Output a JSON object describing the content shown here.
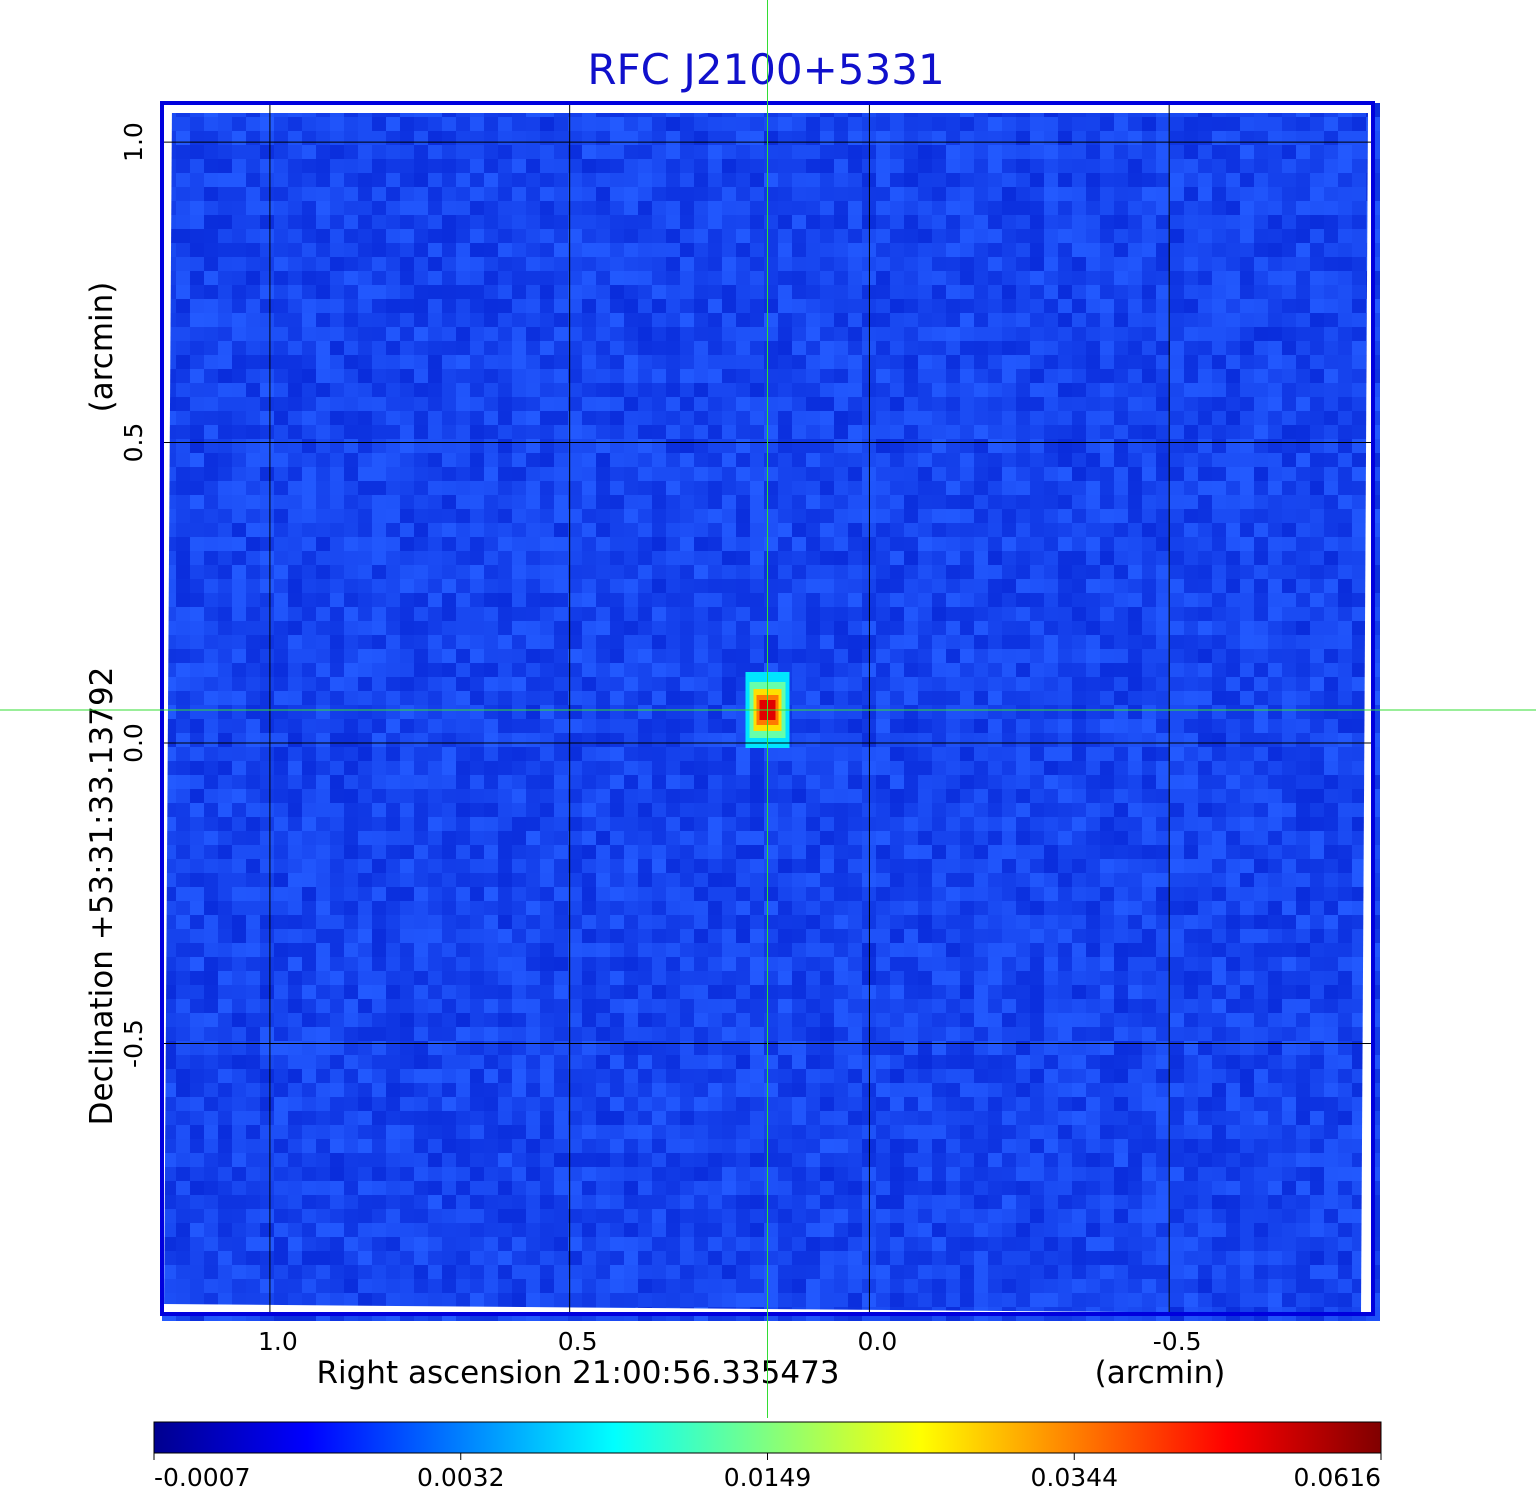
{
  "chart_data": {
    "type": "heatmap",
    "title": "RFC J2100+5331",
    "xlabel": "Right ascension  21:00:56.335473",
    "xunit": "(arcmin)",
    "ylabel": "Declination  +53:31:33.13792",
    "yunit": "(arcmin)",
    "x_ticks": [
      "1.0",
      "0.5",
      "0.0",
      "-0.5"
    ],
    "x_tick_values": [
      1.0,
      0.5,
      0.0,
      -0.5
    ],
    "y_ticks": [
      "1.0",
      "0.5",
      "0.0",
      "-0.5"
    ],
    "y_tick_values": [
      1.0,
      0.5,
      0.0,
      -0.5
    ],
    "xlim": [
      1.18,
      -0.84
    ],
    "ylim": [
      -0.95,
      1.065
    ],
    "colormap": "jet",
    "colorbar_ticks": [
      "-0.0007",
      "0.0032",
      "0.0149",
      "0.0344",
      "0.0616"
    ],
    "colorbar_range": [
      -0.0007,
      0.0616
    ],
    "source_peak": {
      "ra_offset_arcmin": 0.17,
      "dec_offset_arcmin": 0.055,
      "value": 0.0616
    },
    "crosshair": {
      "ra_offset_arcmin": 0.17,
      "dec_offset_arcmin": 0.055
    },
    "grid": true
  },
  "colors": {
    "title": "#1010cc",
    "frame": "#0000dd",
    "background_noise": "#1a3ee8",
    "crosshair": "#33dd33",
    "grid": "#000000"
  }
}
